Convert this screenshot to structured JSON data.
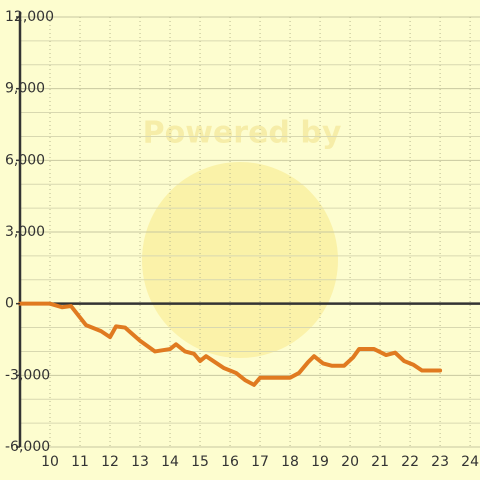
{
  "chart_data": {
    "type": "line",
    "watermark": "Powered by",
    "x": [
      9,
      10,
      10.4,
      10.7,
      11.2,
      11.7,
      12,
      12.2,
      12.5,
      13,
      13.5,
      14,
      14.2,
      14.5,
      14.8,
      15,
      15.2,
      15.5,
      15.8,
      16.2,
      16.5,
      16.8,
      17,
      18,
      18.3,
      18.6,
      18.8,
      19.1,
      19.4,
      19.8,
      20.1,
      20.3,
      20.8,
      21.2,
      21.5,
      21.8,
      22.1,
      22.4,
      23
    ],
    "series": [
      {
        "color": "#e07a20",
        "values": [
          0,
          0,
          -150,
          -100,
          -900,
          -1150,
          -1400,
          -950,
          -1000,
          -1550,
          -2000,
          -1900,
          -1700,
          -2000,
          -2100,
          -2400,
          -2200,
          -2450,
          -2700,
          -2900,
          -3200,
          -3400,
          -3100,
          -3100,
          -2900,
          -2450,
          -2200,
          -2500,
          -2600,
          -2600,
          -2250,
          -1900,
          -1900,
          -2150,
          -2050,
          -2400,
          -2550,
          -2800,
          -2800
        ]
      }
    ],
    "xlim": [
      9,
      24.33
    ],
    "xticks": [
      10,
      11,
      12,
      13,
      14,
      15,
      16,
      17,
      18,
      19,
      20,
      21,
      22,
      23,
      24
    ],
    "ylim": [
      -6000,
      12000
    ],
    "yticks": [
      {
        "value": -6000,
        "label": "-6,000"
      },
      {
        "value": -3000,
        "label": "-3,000"
      },
      0,
      {
        "value": 3000,
        "label": "3,000"
      },
      {
        "value": 6000,
        "label": "6,000"
      },
      {
        "value": 9000,
        "label": "9,000"
      },
      {
        "value": 12000,
        "label": "12,000"
      }
    ],
    "yminorticks": [
      -5000,
      -4000,
      -2000,
      -1000,
      1000,
      2000,
      4000,
      5000,
      7000,
      8000,
      10000,
      11000
    ],
    "grid": true
  }
}
